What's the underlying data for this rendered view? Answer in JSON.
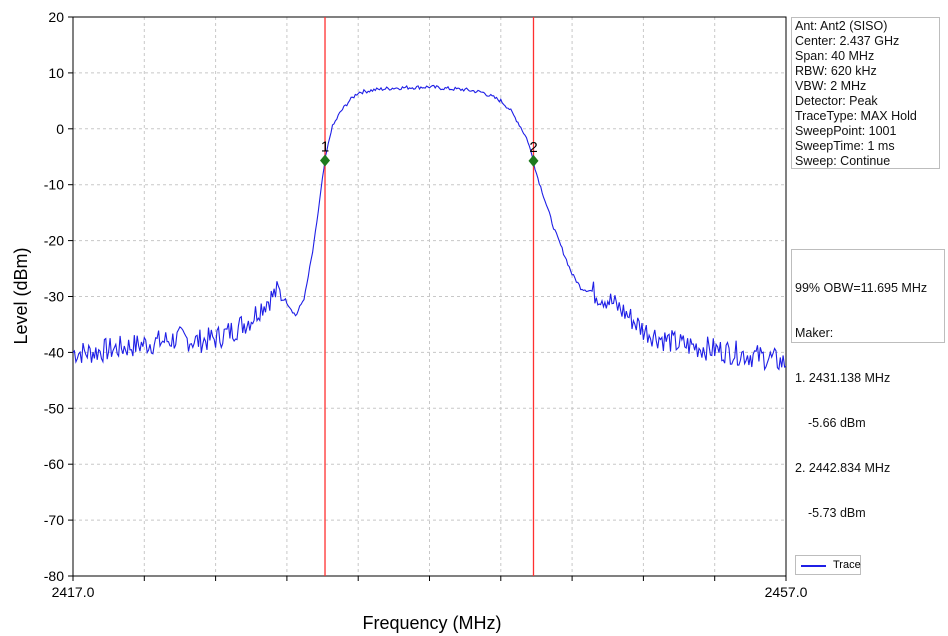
{
  "chart_data": {
    "type": "line",
    "xlabel": "Frequency (MHz)",
    "ylabel": "Level (dBm)",
    "xlim": [
      2417.0,
      2457.0
    ],
    "ylim": [
      -80,
      20
    ],
    "x_tick_labels": [
      "2417.0",
      "2457.0"
    ],
    "y_ticks": [
      20,
      10,
      0,
      -10,
      -20,
      -30,
      -40,
      -50,
      -60,
      -70,
      -80
    ],
    "grid": true,
    "legend": "bottom-right",
    "series": [
      {
        "name": "Trace",
        "color": "#1f1fe6",
        "x": [
          2417,
          2418,
          2419,
          2420,
          2421,
          2422,
          2423,
          2424,
          2425,
          2426,
          2427,
          2427.5,
          2428,
          2428.5,
          2429,
          2429.5,
          2430,
          2430.5,
          2431.138,
          2431.5,
          2432,
          2432.5,
          2433,
          2434,
          2435,
          2436,
          2437,
          2438,
          2439,
          2440,
          2441,
          2441.5,
          2442,
          2442.5,
          2442.834,
          2443,
          2443.5,
          2444,
          2444.5,
          2445,
          2445.5,
          2446,
          2447,
          2448,
          2449,
          2450,
          2451,
          2452,
          2453,
          2454,
          2455,
          2456,
          2457
        ],
        "y": [
          -40,
          -40,
          -39.5,
          -39,
          -38.5,
          -38,
          -37.5,
          -38,
          -37.5,
          -36,
          -34,
          -32,
          -30.5,
          -29,
          -31,
          -33.5,
          -30,
          -21,
          -5.66,
          0,
          3,
          5,
          6.5,
          7,
          7.3,
          7.4,
          7.5,
          7.2,
          7,
          6.5,
          5,
          3.5,
          1,
          -2,
          -5.73,
          -8,
          -13,
          -18,
          -22,
          -26,
          -28.5,
          -29,
          -30.5,
          -33,
          -36,
          -37.5,
          -38.5,
          -39,
          -39.5,
          -40,
          -40.5,
          -41,
          -42
        ]
      }
    ],
    "markers": [
      {
        "label": "1",
        "x": 2431.138,
        "y": -5.66
      },
      {
        "label": "2",
        "x": 2442.834,
        "y": -5.73
      }
    ],
    "marker_color": "#ff3030",
    "marker_point_color": "#1e7a1e"
  },
  "settings": [
    "Ant: Ant2 (SISO)",
    "Center: 2.437 GHz",
    "Span: 40 MHz",
    "RBW: 620 kHz",
    "VBW: 2 MHz",
    "Detector: Peak",
    "TraceType: MAX Hold",
    "SweepPoint: 1001",
    "SweepTime: 1 ms",
    "Sweep: Continue"
  ],
  "obw": {
    "summary": "99% OBW=11.695 MHz",
    "maker_label": "Maker:",
    "m1_freq": "1. 2431.138 MHz",
    "m1_level": "-5.66 dBm",
    "m2_freq": "2. 2442.834 MHz",
    "m2_level": "-5.73 dBm"
  },
  "legend": {
    "label": "Trace"
  }
}
